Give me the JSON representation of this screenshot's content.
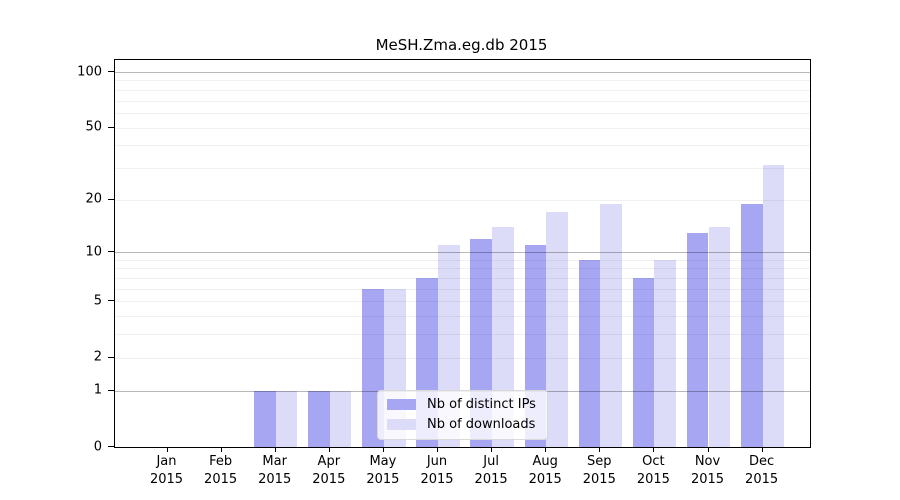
{
  "title": "MeSH.Zma.eg.db 2015",
  "chart_data": {
    "type": "bar",
    "title": "MeSH.Zma.eg.db 2015",
    "categories": [
      "Jan 2015",
      "Feb 2015",
      "Mar 2015",
      "Apr 2015",
      "May 2015",
      "Jun 2015",
      "Jul 2015",
      "Aug 2015",
      "Sep 2015",
      "Oct 2015",
      "Nov 2015",
      "Dec 2015"
    ],
    "series": [
      {
        "name": "Nb of distinct IPs",
        "color": "#a6a6f3",
        "values": [
          0,
          0,
          1,
          1,
          6,
          7,
          12,
          11,
          9,
          7,
          13,
          19
        ]
      },
      {
        "name": "Nb of downloads",
        "color": "#dcdcf8",
        "values": [
          0,
          0,
          1,
          1,
          6,
          11,
          14,
          17,
          19,
          9,
          14,
          31
        ]
      }
    ],
    "yscale": "log1p",
    "yticks": [
      0,
      1,
      2,
      5,
      10,
      20,
      50,
      100
    ],
    "grid_major": [
      1,
      10,
      100
    ],
    "grid_minor": [
      2,
      3,
      4,
      5,
      6,
      7,
      8,
      9,
      20,
      30,
      40,
      50,
      60,
      70,
      80,
      90
    ],
    "ylim": [
      0,
      115
    ],
    "xlabel": "",
    "ylabel": "",
    "grid": "on",
    "legend_position": "bottom-center",
    "frame_color": "#000000",
    "background_color": "#ffffff"
  }
}
